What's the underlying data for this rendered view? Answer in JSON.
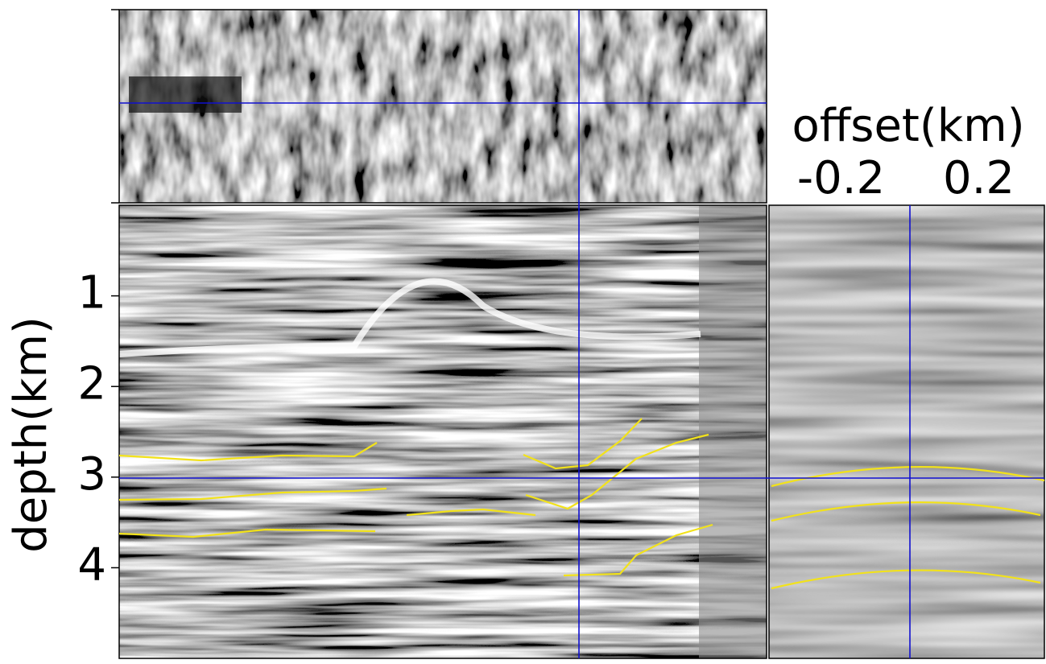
{
  "chart_data": {
    "type": "image",
    "xlabel": "offset(km)",
    "xlim": [
      -0.4,
      0.4
    ],
    "xticks": [
      -0.2,
      0.2
    ],
    "ylabel": "depth(km)",
    "ylim": [
      0,
      5
    ],
    "yticks": [
      1,
      2,
      3,
      4
    ]
  }
}
